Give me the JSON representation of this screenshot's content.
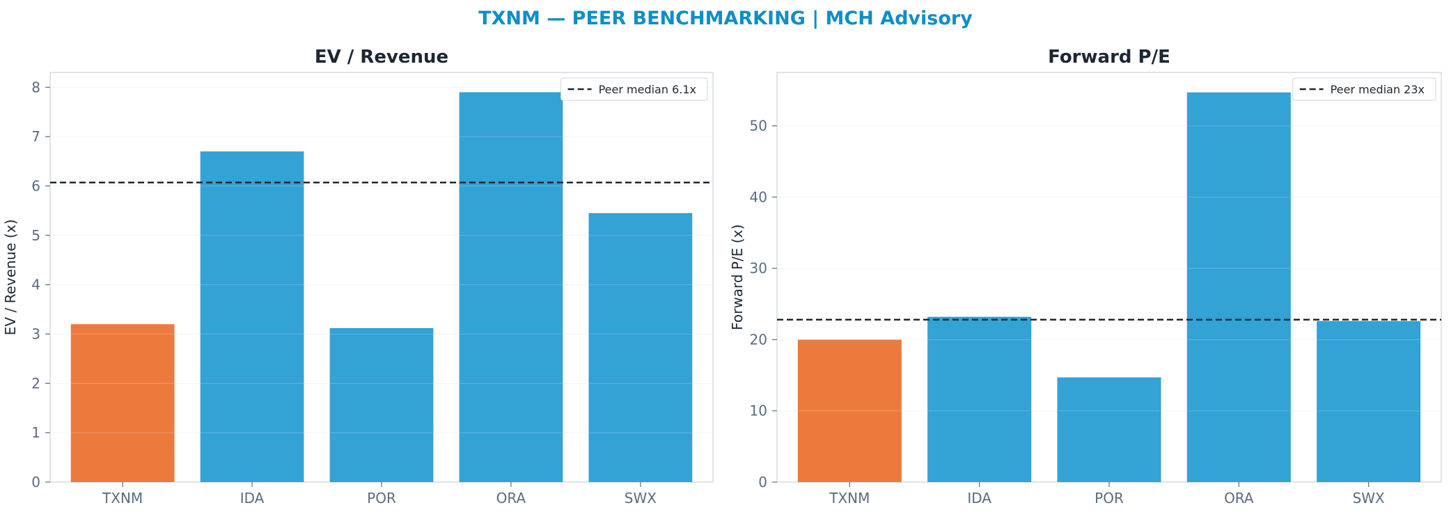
{
  "title": "TXNM — PEER BENCHMARKING | MCH Advisory",
  "colors": {
    "highlight": "#ec7a3d",
    "peer": "#33a2d4",
    "median_line": "#1d2733",
    "title": "#0e8ec9"
  },
  "chart_data": [
    {
      "type": "bar",
      "title": "EV / Revenue",
      "ylabel": "EV / Revenue (x)",
      "xlabel": "",
      "categories": [
        "TXNM",
        "IDA",
        "POR",
        "ORA",
        "SWX"
      ],
      "values": [
        3.2,
        6.7,
        3.12,
        7.9,
        5.45
      ],
      "highlight": "TXNM",
      "ylim": [
        0,
        8.3
      ],
      "yticks": [
        0,
        1,
        2,
        3,
        4,
        5,
        6,
        7,
        8
      ],
      "reference_line": {
        "value": 6.07,
        "label": "Peer median 6.1x",
        "style": "dashed"
      },
      "legend": "top-right",
      "grid": true
    },
    {
      "type": "bar",
      "title": "Forward P/E",
      "ylabel": "Forward P/E (x)",
      "xlabel": "",
      "categories": [
        "TXNM",
        "IDA",
        "POR",
        "ORA",
        "SWX"
      ],
      "values": [
        20.0,
        23.2,
        14.7,
        54.7,
        22.6
      ],
      "highlight": "TXNM",
      "ylim": [
        0,
        57.5
      ],
      "yticks": [
        0,
        10,
        20,
        30,
        40,
        50
      ],
      "reference_line": {
        "value": 22.8,
        "label": "Peer median 23x",
        "style": "dashed"
      },
      "legend": "top-right",
      "grid": true
    }
  ]
}
